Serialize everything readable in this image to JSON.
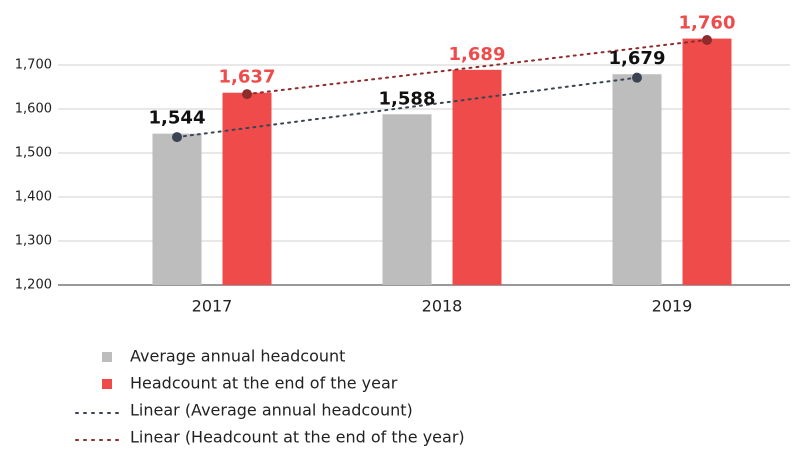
{
  "chart_data": {
    "type": "bar",
    "categories": [
      "2017",
      "2018",
      "2019"
    ],
    "series": [
      {
        "name": "Average annual headcount",
        "color": "#bdbdbd",
        "label_color": "#111111",
        "trend_color": "#3a4452",
        "values": [
          1544,
          1588,
          1679
        ],
        "value_labels": [
          "1,544",
          "1,588",
          "1,679"
        ],
        "trend_name": "Linear (Average annual headcount)"
      },
      {
        "name": "Headcount at the end of the year",
        "color": "#ef4b4b",
        "label_color": "#ef4b4b",
        "trend_color": "#8e2b2b",
        "values": [
          1637,
          1689,
          1760
        ],
        "value_labels": [
          "1,637",
          "1,689",
          "1,760"
        ],
        "trend_name": "Linear (Headcount at the end of the year)"
      }
    ],
    "ylim": [
      1200,
      1800
    ],
    "yticks": [
      {
        "value": 1200,
        "label": "1,200"
      },
      {
        "value": 1300,
        "label": "1,300"
      },
      {
        "value": 1400,
        "label": "1,400"
      },
      {
        "value": 1500,
        "label": "1,500"
      },
      {
        "value": 1600,
        "label": "1,600"
      },
      {
        "value": 1700,
        "label": "1,700"
      }
    ],
    "grid": true
  }
}
